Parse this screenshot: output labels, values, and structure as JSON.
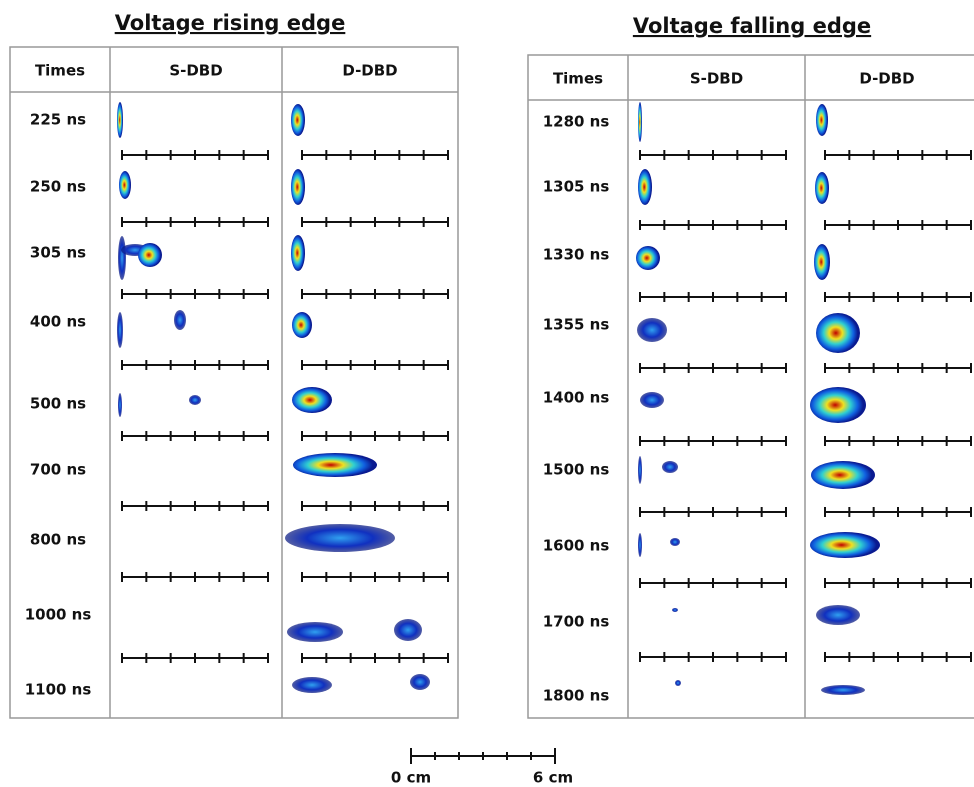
{
  "left": {
    "title": "Voltage rising edge",
    "headers": [
      "Times",
      "S-DBD",
      "D-DBD"
    ],
    "rows": [
      "225 ns",
      "250 ns",
      "305 ns",
      "400 ns",
      "500 ns",
      "700 ns",
      "800 ns",
      "1000 ns",
      "1100 ns"
    ]
  },
  "right": {
    "title": "Voltage falling edge",
    "headers": [
      "Times",
      "S-DBD",
      "D-DBD"
    ],
    "rows": [
      "1280 ns",
      "1305 ns",
      "1330 ns",
      "1355 ns",
      "1400 ns",
      "1500 ns",
      "1600 ns",
      "1700 ns",
      "1800 ns"
    ]
  },
  "scale_bar": {
    "start": "0 cm",
    "end": "6 cm"
  }
}
